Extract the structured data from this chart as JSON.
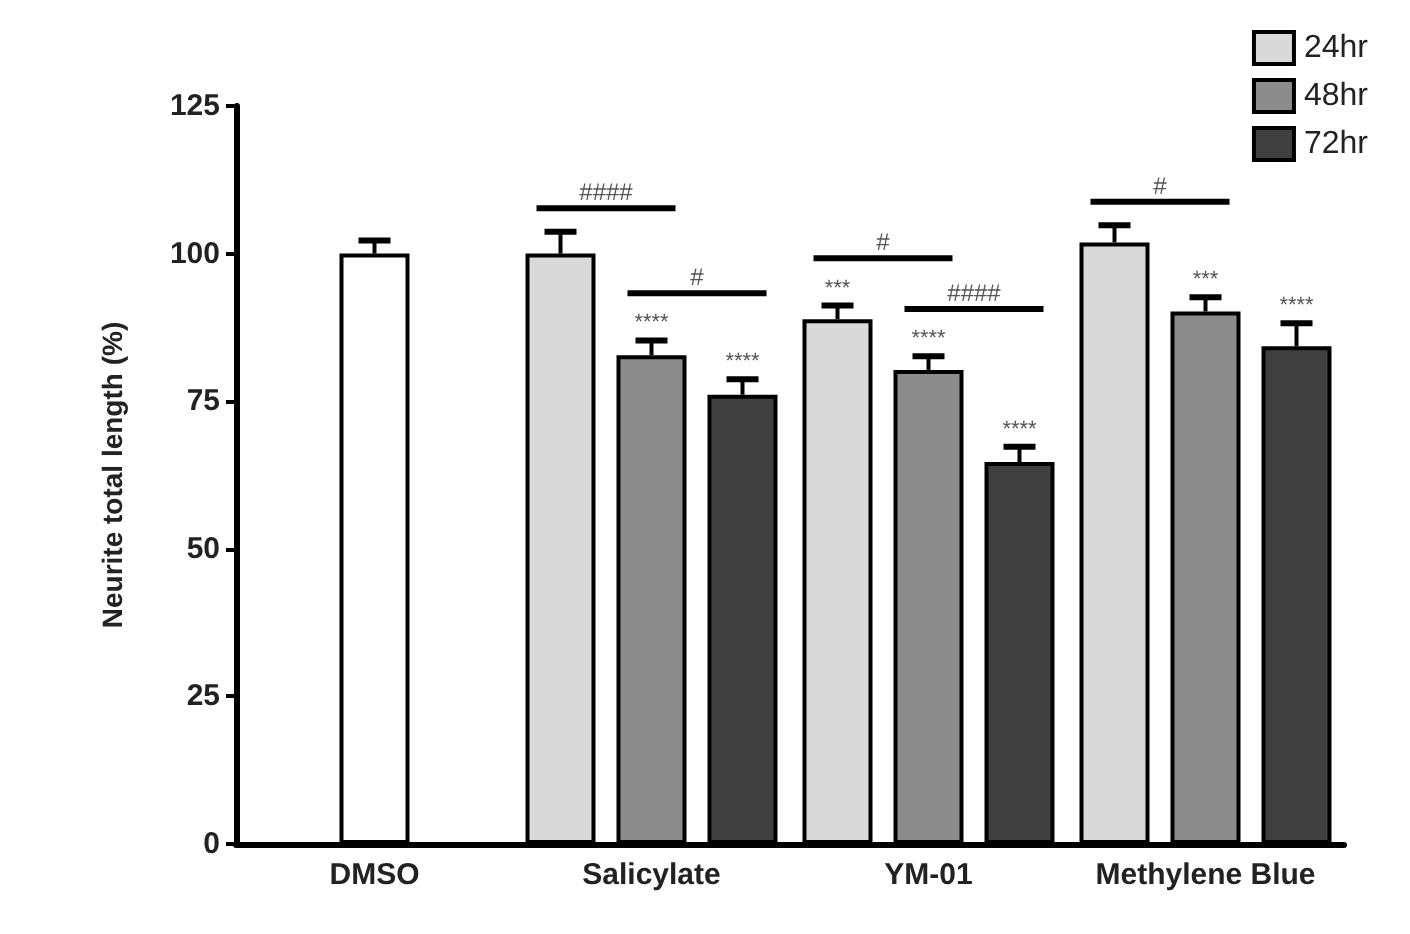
{
  "chart_data": {
    "type": "bar",
    "ylabel": "Neurite total length (%)",
    "categories": [
      "DMSO",
      "Salicylate",
      "YM-01",
      "Methylene Blue"
    ],
    "series": [
      {
        "color": "#ffffff",
        "values": [
          100,
          null,
          null,
          null
        ],
        "errors": [
          2.2,
          null,
          null,
          null
        ],
        "value_labels": [
          null,
          null,
          null,
          null
        ]
      },
      {
        "name": "24hr",
        "color": "#d9d9d9",
        "values": [
          null,
          100,
          88.9,
          101.9
        ],
        "errors": [
          null,
          3.7,
          2.3,
          2.9
        ],
        "value_labels": [
          null,
          null,
          "***",
          null
        ]
      },
      {
        "name": "48hr",
        "color": "#8c8c8c",
        "values": [
          null,
          82.8,
          80.3,
          90.2
        ],
        "errors": [
          null,
          2.5,
          2.3,
          2.4
        ],
        "value_labels": [
          null,
          "****",
          "****",
          "***"
        ]
      },
      {
        "name": "72hr",
        "color": "#404040",
        "values": [
          null,
          76.1,
          64.7,
          84.3
        ],
        "errors": [
          null,
          2.6,
          2.6,
          3.9
        ],
        "value_labels": [
          null,
          "****",
          "****",
          "****"
        ]
      }
    ],
    "annotations": [
      "####",
      "#",
      "#",
      "####",
      "#"
    ],
    "ylim": [
      0,
      125
    ],
    "yticks": [
      0,
      25,
      50,
      75,
      100,
      125
    ],
    "grid": false,
    "legend": "top right"
  }
}
